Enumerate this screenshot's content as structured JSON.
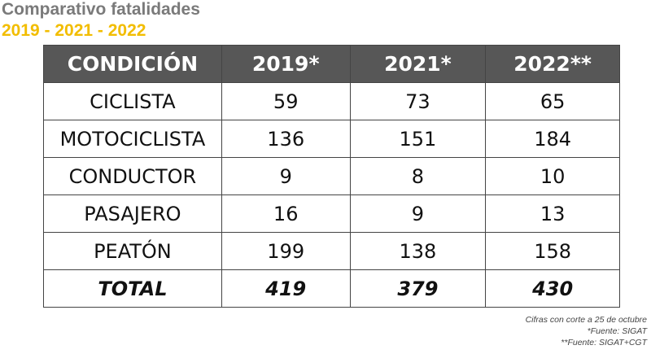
{
  "header": {
    "title": "Comparativo fatalidades",
    "subtitle": "2019 - 2021 - 2022"
  },
  "table": {
    "columns": [
      "CONDICIÓN",
      "2019*",
      "2021*",
      "2022**"
    ],
    "rows": [
      [
        "CICLISTA",
        59,
        73,
        65
      ],
      [
        "MOTOCICLISTA",
        136,
        151,
        184
      ],
      [
        "CONDUCTOR",
        9,
        8,
        10
      ],
      [
        "PASAJERO",
        16,
        9,
        13
      ],
      [
        "PEATÓN",
        199,
        138,
        158
      ]
    ],
    "total": [
      "TOTAL",
      419,
      379,
      430
    ]
  },
  "notes": [
    "Cifras con corte a 25 de octubre",
    "*Fuente: SIGAT",
    "**Fuente: SIGAT+CGT"
  ]
}
